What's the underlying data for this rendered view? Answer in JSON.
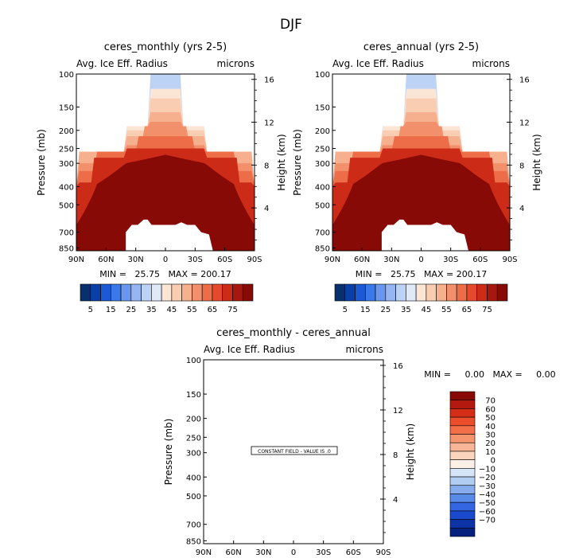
{
  "figure": {
    "season": "DJF"
  },
  "panels": [
    {
      "title": "ceres_monthly (yrs 2-5)",
      "left_label": "Avg. Ice Eff. Radius",
      "right_label": "microns",
      "ylabel": "Pressure (mb)",
      "y2label": "Height (km)",
      "stats": "MIN =   25.75   MAX = 200.17"
    },
    {
      "title": "ceres_annual (yrs 2-5)",
      "left_label": "Avg. Ice Eff. Radius",
      "right_label": "microns",
      "ylabel": "Pressure (mb)",
      "y2label": "Height (km)",
      "stats": "MIN =   25.75   MAX = 200.17"
    },
    {
      "title": "ceres_monthly - ceres_annual",
      "left_label": "Avg. Ice Eff. Radius",
      "right_label": "microns",
      "ylabel": "Pressure (mb)",
      "y2label": "Height (km)",
      "stats": "MIN =     0.00   MAX =     0.00",
      "annotation": "CONSTANT FIELD - VALUE IS .0"
    }
  ],
  "colors": {
    "main_scale": [
      "#08306b",
      "#0b3fa8",
      "#1a5ad6",
      "#3b78e8",
      "#6a97ee",
      "#95b6f0",
      "#bcd3f5",
      "#dfe9f8",
      "#fbe6d6",
      "#f9cdb2",
      "#f6b08e",
      "#f1906a",
      "#ec6d48",
      "#e44a2b",
      "#cc2b18",
      "#a8170f",
      "#880a06"
    ],
    "diff_scale": [
      "#880a06",
      "#b3190f",
      "#d52e18",
      "#ec4d2a",
      "#f26f4a",
      "#f6946d",
      "#f8b597",
      "#fad4bd",
      "#fdf0e6",
      "#d6e5f8",
      "#b2cdf2",
      "#86aced",
      "#5a8ae8",
      "#3366e0",
      "#1b49cc",
      "#0e33a6",
      "#07227c"
    ]
  },
  "chart_data": [
    {
      "type": "heatmap",
      "title": "ceres_monthly (yrs 2-5)",
      "variable": "Avg. Ice Eff. Radius",
      "units": "microns",
      "xlabel": "",
      "ylabel": "Pressure (mb)",
      "y2label": "Height (km)",
      "x_ticks": [
        "90N",
        "60N",
        "30N",
        "0",
        "30S",
        "60S",
        "90S"
      ],
      "y_ticks": [
        100,
        150,
        200,
        250,
        300,
        400,
        500,
        700,
        850
      ],
      "y2_ticks": [
        4,
        8,
        12,
        16
      ],
      "y_scale": "log",
      "ylim": [
        1000,
        100
      ],
      "y2lim": [
        0,
        16.5
      ],
      "xlim": [
        90,
        -90
      ],
      "min": 25.75,
      "max": 200.17,
      "colorbar_levels": [
        5,
        10,
        15,
        20,
        25,
        30,
        35,
        40,
        45,
        50,
        55,
        60,
        65,
        70,
        75,
        80
      ],
      "colorbar_labels": [
        "5",
        "15",
        "25",
        "35",
        "45",
        "55",
        "65",
        "75"
      ]
    },
    {
      "type": "heatmap",
      "title": "ceres_annual (yrs 2-5)",
      "variable": "Avg. Ice Eff. Radius",
      "units": "microns",
      "xlabel": "",
      "ylabel": "Pressure (mb)",
      "y2label": "Height (km)",
      "x_ticks": [
        "90N",
        "60N",
        "30N",
        "0",
        "30S",
        "60S",
        "90S"
      ],
      "y_ticks": [
        100,
        150,
        200,
        250,
        300,
        400,
        500,
        700,
        850
      ],
      "y2_ticks": [
        4,
        8,
        12,
        16
      ],
      "y_scale": "log",
      "ylim": [
        1000,
        100
      ],
      "y2lim": [
        0,
        16.5
      ],
      "xlim": [
        90,
        -90
      ],
      "min": 25.75,
      "max": 200.17,
      "colorbar_levels": [
        5,
        10,
        15,
        20,
        25,
        30,
        35,
        40,
        45,
        50,
        55,
        60,
        65,
        70,
        75,
        80
      ],
      "colorbar_labels": [
        "5",
        "15",
        "25",
        "35",
        "45",
        "55",
        "65",
        "75"
      ]
    },
    {
      "type": "heatmap",
      "title": "ceres_monthly - ceres_annual",
      "variable": "Avg. Ice Eff. Radius",
      "units": "microns",
      "xlabel": "",
      "ylabel": "Pressure (mb)",
      "y2label": "Height (km)",
      "x_ticks": [
        "90N",
        "60N",
        "30N",
        "0",
        "30S",
        "60S",
        "90S"
      ],
      "y_ticks": [
        100,
        150,
        200,
        250,
        300,
        400,
        500,
        700,
        850
      ],
      "y2_ticks": [
        4,
        8,
        12,
        16
      ],
      "y_scale": "log",
      "ylim": [
        1000,
        100
      ],
      "y2lim": [
        0,
        16.5
      ],
      "xlim": [
        90,
        -90
      ],
      "min": 0.0,
      "max": 0.0,
      "annotation": "CONSTANT FIELD - VALUE IS .0",
      "colorbar_levels": [
        70,
        60,
        50,
        40,
        30,
        20,
        10,
        0,
        -10,
        -20,
        -30,
        -40,
        -50,
        -60,
        -70
      ],
      "colorbar_labels": [
        "70",
        "60",
        "50",
        "40",
        "30",
        "20",
        "10",
        "0",
        "−10",
        "−20",
        "−30",
        "−40",
        "−50",
        "−60",
        "−70"
      ]
    }
  ]
}
